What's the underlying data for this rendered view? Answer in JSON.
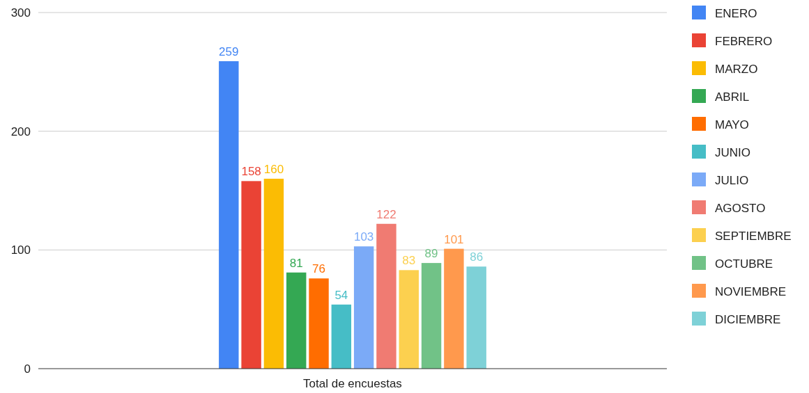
{
  "chart_data": {
    "type": "bar",
    "categories": [
      "Total de encuestas"
    ],
    "series": [
      {
        "name": "ENERO",
        "color": "#4285f4",
        "values": [
          259
        ]
      },
      {
        "name": "FEBRERO",
        "color": "#ea4335",
        "values": [
          158
        ]
      },
      {
        "name": "MARZO",
        "color": "#fbbc04",
        "values": [
          160
        ]
      },
      {
        "name": "ABRIL",
        "color": "#34a853",
        "values": [
          81
        ]
      },
      {
        "name": "MAYO",
        "color": "#ff6d01",
        "values": [
          76
        ]
      },
      {
        "name": "JUNIO",
        "color": "#46bdc6",
        "values": [
          54
        ]
      },
      {
        "name": "JULIO",
        "color": "#7baaf7",
        "values": [
          103
        ]
      },
      {
        "name": "AGOSTO",
        "color": "#f07b72",
        "values": [
          122
        ]
      },
      {
        "name": "SEPTIEMBRE",
        "color": "#fcd04f",
        "values": [
          83
        ]
      },
      {
        "name": "OCTUBRE",
        "color": "#71c287",
        "values": [
          89
        ]
      },
      {
        "name": "NOVIEMBRE",
        "color": "#ff994d",
        "values": [
          101
        ]
      },
      {
        "name": "DICIEMBRE",
        "color": "#7ed1d7",
        "values": [
          86
        ]
      }
    ],
    "ylim": [
      0,
      300
    ],
    "yticks": [
      0,
      100,
      200,
      300
    ],
    "grid": "y",
    "legend": "right",
    "data_labels": true
  }
}
